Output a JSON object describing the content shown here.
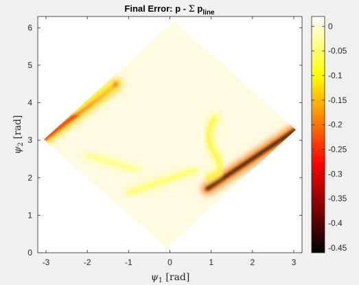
{
  "chart_data": {
    "type": "heatmap",
    "title": {
      "prefix": "Final Error: p - ",
      "sigma": "Σ",
      "p": " p",
      "subscript": "line"
    },
    "xlabel": {
      "symbol": "ψ",
      "subscript": "1",
      "unit": " [rad]"
    },
    "ylabel": {
      "symbol": "ψ",
      "subscript": "2",
      "unit": " [rad]"
    },
    "xlim": [
      -3.2,
      3.2
    ],
    "ylim": [
      0,
      6.3
    ],
    "xticks": [
      -3,
      -2,
      -1,
      0,
      1,
      2,
      3
    ],
    "yticks": [
      0,
      1,
      2,
      3,
      4,
      5,
      6
    ],
    "region": {
      "shape": "diamond",
      "vertices": [
        [
          0.1,
          6.18
        ],
        [
          3.05,
          3.28
        ],
        [
          -0.08,
          0.12
        ],
        [
          -3.05,
          3.02
        ]
      ]
    },
    "features": [
      {
        "name": "ridge-left-upper-edge",
        "from": [
          -3.05,
          3.02
        ],
        "to": [
          -1.3,
          4.5
        ],
        "min_value": -0.3
      },
      {
        "name": "band-upper-left",
        "from": [
          -2.3,
          3.8
        ],
        "to": [
          -1.4,
          4.45
        ],
        "min_value": -0.12
      },
      {
        "name": "ridge-right-lower-edge",
        "from": [
          0.9,
          1.7
        ],
        "to": [
          3.05,
          3.28
        ],
        "min_value": -0.45
      },
      {
        "name": "curve-right",
        "from": [
          0.9,
          2.0
        ],
        "to": [
          1.1,
          3.6
        ],
        "min_value": -0.12
      },
      {
        "name": "band-bottom",
        "from": [
          -1.0,
          1.6
        ],
        "to": [
          0.6,
          2.2
        ],
        "min_value": -0.08
      },
      {
        "name": "band-lower-left",
        "from": [
          -2.0,
          2.6
        ],
        "to": [
          -0.8,
          2.2
        ],
        "min_value": -0.06
      }
    ],
    "colorbar": {
      "colormap": "hot",
      "clim": [
        -0.46,
        0.02
      ],
      "ticks": [
        0,
        -0.05,
        -0.1,
        -0.15,
        -0.2,
        -0.25,
        -0.3,
        -0.35,
        -0.4,
        -0.45
      ],
      "tick_labels": [
        "0",
        "-0.05",
        "-0.1",
        "-0.15",
        "-0.2",
        "-0.25",
        "-0.3",
        "-0.35",
        "-0.4",
        "-0.45"
      ]
    }
  }
}
